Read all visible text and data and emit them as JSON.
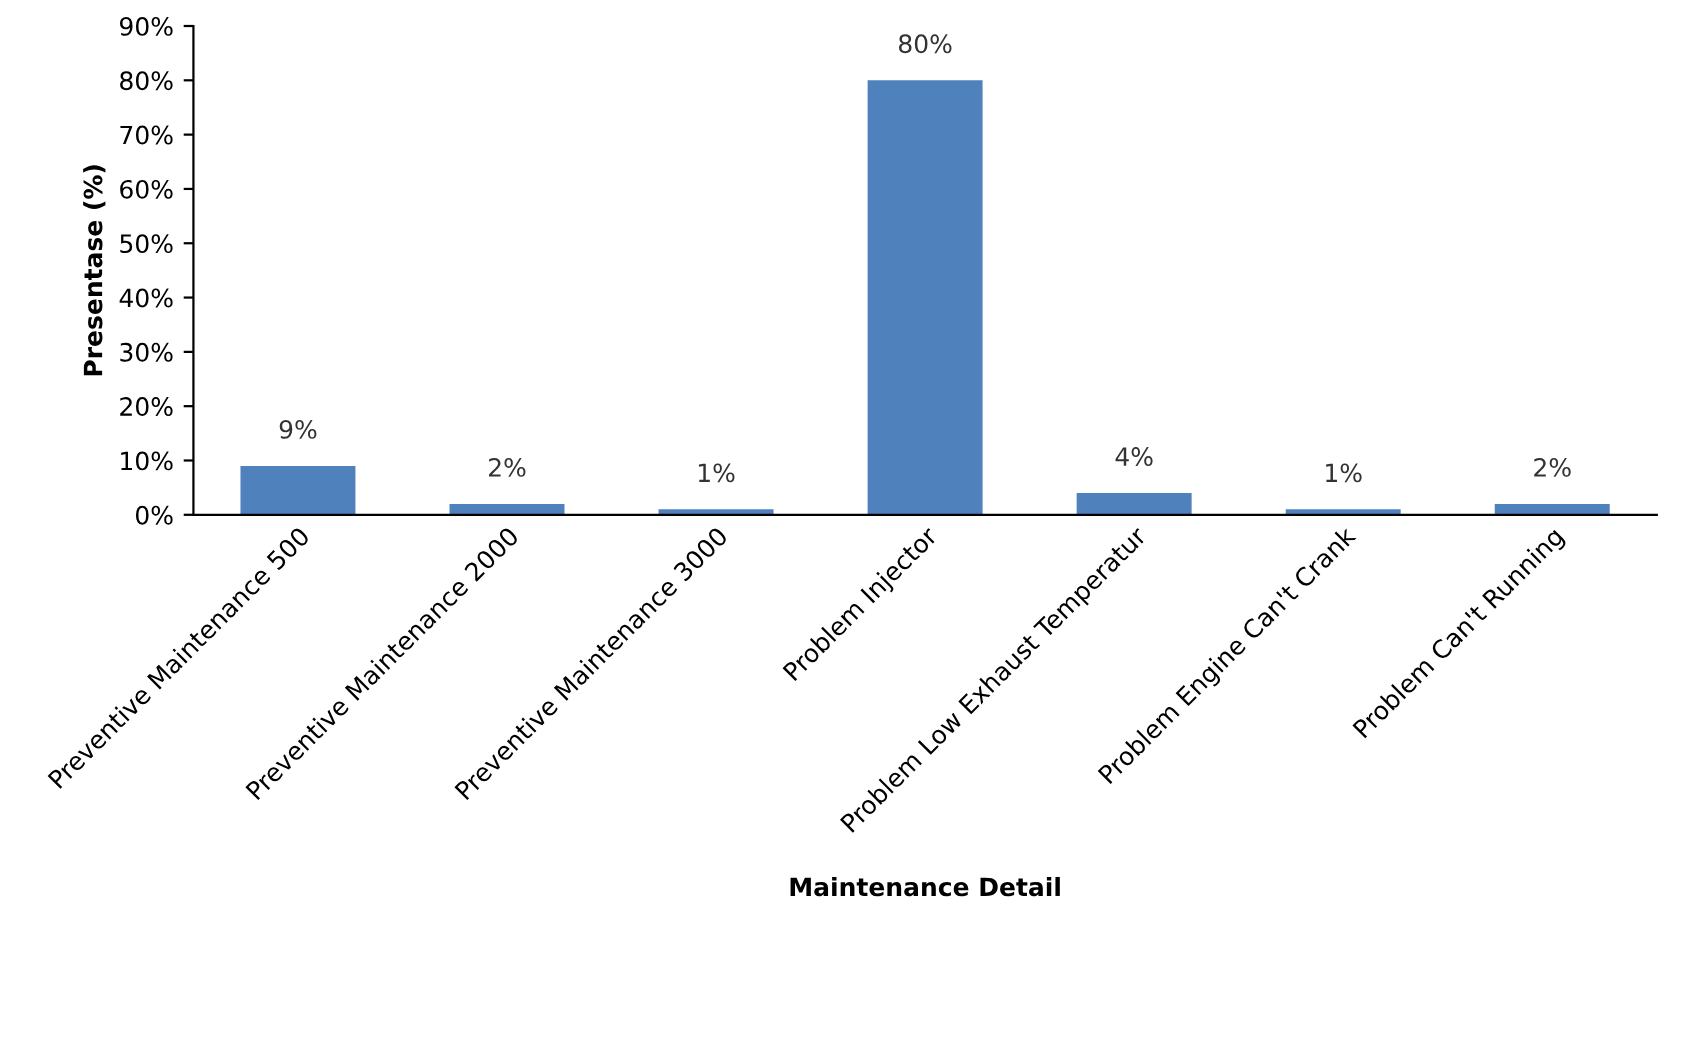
{
  "chart_data": {
    "type": "bar",
    "xlabel": "Maintenance Detail",
    "ylabel": "Presentase (%)",
    "categories": [
      "Preventive Maintenance 500",
      "Preventive Maintenance 2000",
      "Preventive Maintenance 3000",
      "Problem Injector",
      "Problem Low Exhaust Temperatur",
      "Problem Engine Can't Crank",
      "Problem Can't Running"
    ],
    "values": [
      9,
      2,
      1,
      80,
      4,
      1,
      2
    ],
    "value_labels": [
      "9%",
      "2%",
      "1%",
      "80%",
      "4%",
      "1%",
      "2%"
    ],
    "color": "#4f81bd",
    "ylim": [
      0,
      90
    ],
    "yticks": [
      {
        "value": 0,
        "label": "0%"
      },
      {
        "value": 10,
        "label": "10%"
      },
      {
        "value": 20,
        "label": "20%"
      },
      {
        "value": 30,
        "label": "30%"
      },
      {
        "value": 40,
        "label": "40%"
      },
      {
        "value": 50,
        "label": "50%"
      },
      {
        "value": 60,
        "label": "60%"
      },
      {
        "value": 70,
        "label": "70%"
      },
      {
        "value": 80,
        "label": "80%"
      },
      {
        "value": 90,
        "label": "90%"
      }
    ]
  }
}
